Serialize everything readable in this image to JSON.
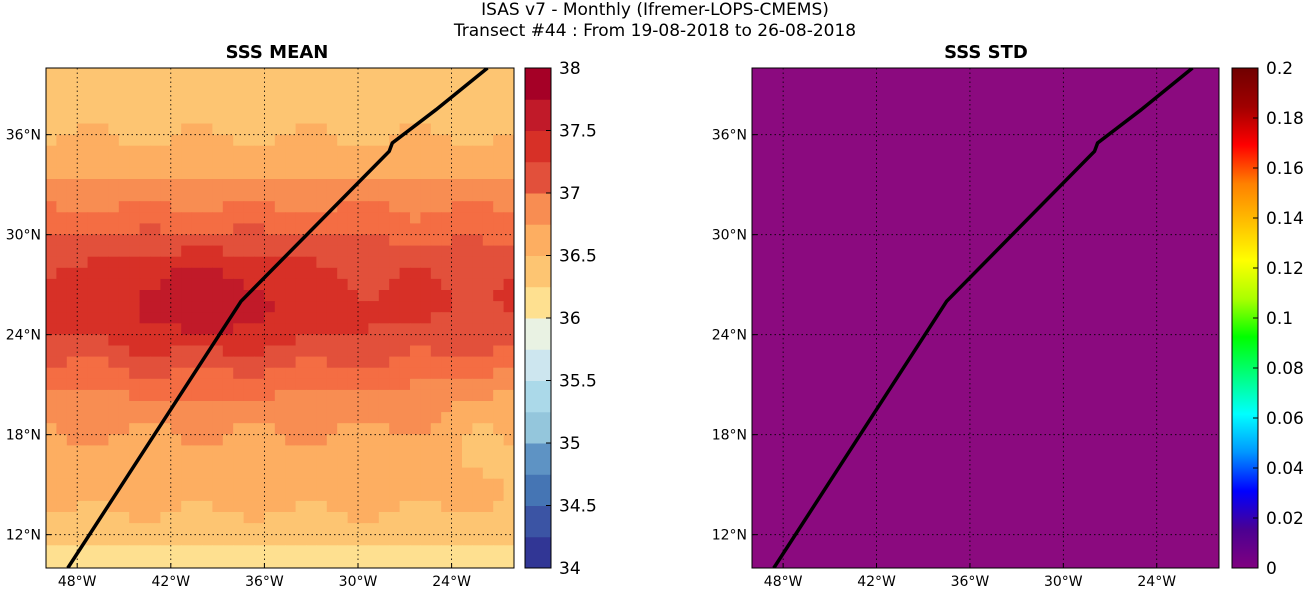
{
  "figure": {
    "title_line1": "ISAS v7 - Monthly (Ifremer-LOPS-CMEMS)",
    "title_line2": "Transect #44 : From 19-08-2018 to 26-08-2018"
  },
  "map_extent": {
    "lon": [
      -50,
      -20
    ],
    "lat": [
      10,
      40
    ]
  },
  "transect_track": [
    [
      -48.6,
      10
    ],
    [
      -37.5,
      26
    ],
    [
      -28,
      35
    ],
    [
      -27.8,
      35.5
    ],
    [
      -25,
      37.5
    ],
    [
      -21.7,
      40
    ]
  ],
  "panels": [
    {
      "title": "SSS MEAN",
      "x_ticks": [
        "48°W",
        "42°W",
        "36°W",
        "30°W",
        "24°W"
      ],
      "x_tick_values": [
        -48,
        -42,
        -36,
        -30,
        -24
      ],
      "y_ticks": [
        "12°N",
        "18°N",
        "24°N",
        "30°N",
        "36°N"
      ],
      "y_tick_values": [
        12,
        18,
        24,
        30,
        36
      ],
      "colorbar": {
        "range": [
          34,
          38
        ],
        "tick_labels": [
          "34",
          "34.5",
          "35",
          "35.5",
          "36",
          "36.5",
          "37",
          "37.5",
          "38"
        ],
        "tick_values": [
          34,
          34.5,
          35,
          35.5,
          36,
          36.5,
          37,
          37.5,
          38
        ],
        "levels": 16,
        "palette": [
          "#313695",
          "#3b54a4",
          "#4575b4",
          "#5e93c4",
          "#74add1",
          "#94c6dc",
          "#abd9e9",
          "#cde6ef",
          "#e9f2e3",
          "#fee090",
          "#fdc572",
          "#fdae61",
          "#f88d52",
          "#f46d43",
          "#e2503b",
          "#d73027",
          "#c11a29",
          "#a50026"
        ]
      }
    },
    {
      "title": "SSS STD",
      "x_ticks": [
        "48°W",
        "42°W",
        "36°W",
        "30°W",
        "24°W"
      ],
      "x_tick_values": [
        -48,
        -42,
        -36,
        -30,
        -24
      ],
      "y_ticks": [
        "12°N",
        "18°N",
        "24°N",
        "30°N",
        "36°N"
      ],
      "y_tick_values": [
        12,
        18,
        24,
        30,
        36
      ],
      "field_color": "#8b0a7f",
      "colorbar": {
        "range": [
          0,
          0.2
        ],
        "tick_labels": [
          "0",
          "0.02",
          "0.04",
          "0.06",
          "0.08",
          "0.1",
          "0.12",
          "0.14",
          "0.16",
          "0.18",
          "0.2"
        ],
        "tick_values": [
          0,
          0.02,
          0.04,
          0.06,
          0.08,
          0.1,
          0.12,
          0.14,
          0.16,
          0.18,
          0.2
        ],
        "palette": [
          "#800080",
          "#4b0092",
          "#0000ff",
          "#0096ff",
          "#00ffff",
          "#00ff7f",
          "#00ff00",
          "#aaff00",
          "#ffff00",
          "#ffbf00",
          "#ff8000",
          "#ff0000",
          "#a00000",
          "#700000"
        ]
      }
    }
  ]
}
